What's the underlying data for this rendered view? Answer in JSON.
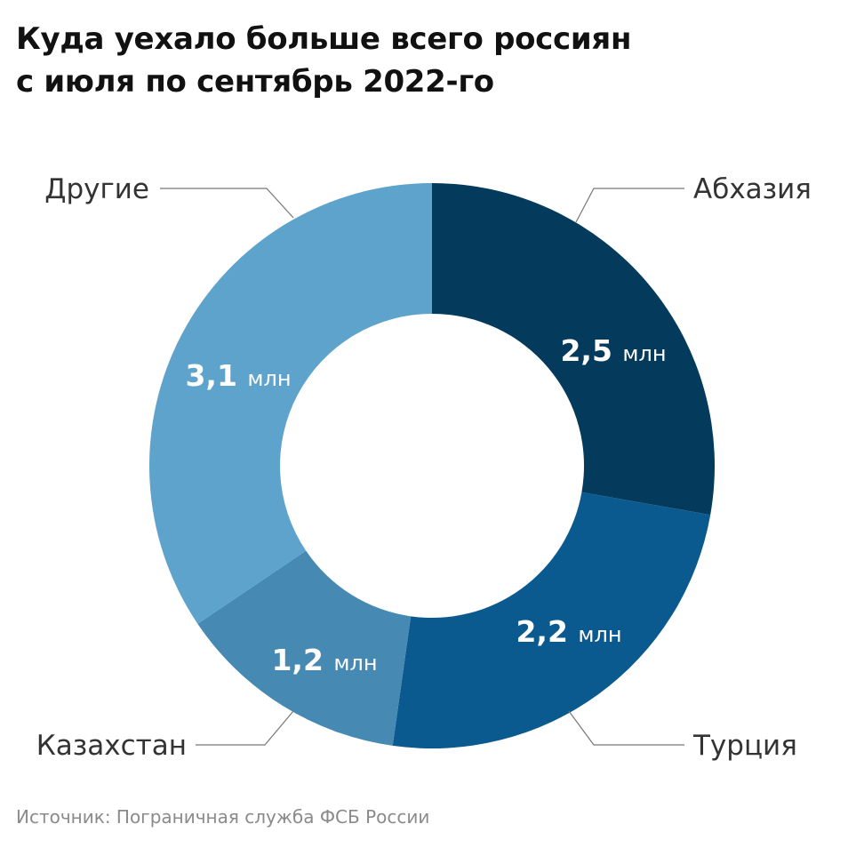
{
  "title": {
    "line1": "Куда уехало больше всего россиян",
    "line2": "с июля по сентябрь 2022-го"
  },
  "source": "Источник: Пограничная служба ФСБ России",
  "chart_data": {
    "type": "pie",
    "variant": "donut",
    "title": "Куда уехало больше всего россиян с июля по сентябрь 2022-го",
    "unit": "млн",
    "categories": [
      "Абхазия",
      "Турция",
      "Казахстан",
      "Другие"
    ],
    "values": [
      2.5,
      2.2,
      1.2,
      3.1
    ],
    "value_labels": [
      "2,5",
      "2,2",
      "1,2",
      "3,1"
    ],
    "colors": [
      "#043a5c",
      "#0b5a8f",
      "#4689b3",
      "#5ea3cc"
    ],
    "legend": "none"
  }
}
